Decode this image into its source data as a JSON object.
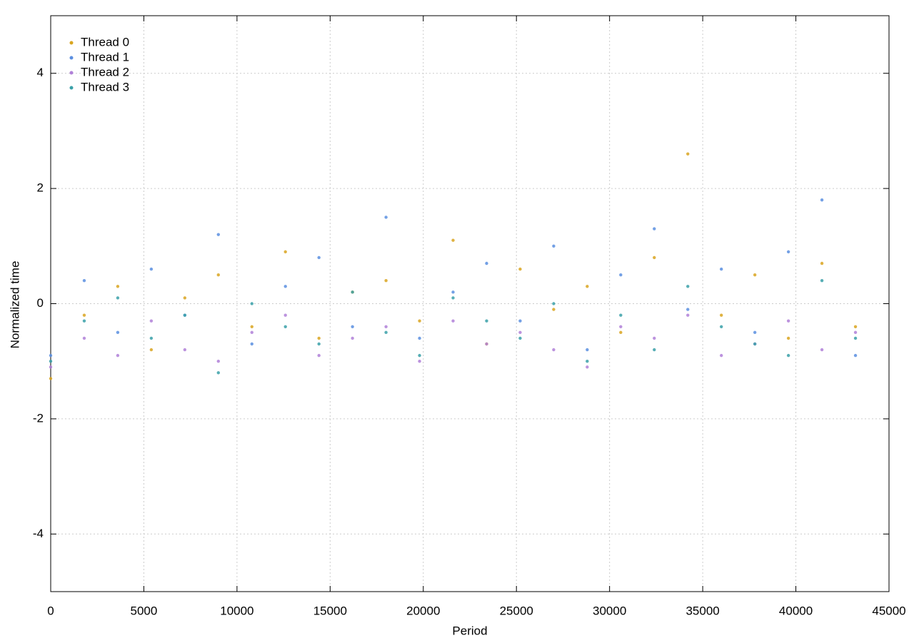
{
  "chart_data": {
    "type": "scatter",
    "x_label": "Period",
    "y_label": "Normalized time",
    "x": [
      0,
      1800,
      3600,
      5400,
      7200,
      9000,
      10800,
      12600,
      14400,
      16200,
      18000,
      19800,
      21600,
      23400,
      25200,
      27000,
      28800,
      30600,
      32400,
      34200,
      36000,
      37800,
      39600,
      41400,
      43200
    ],
    "series": [
      {
        "name": "Thread 0",
        "color": "#d9a520",
        "values": [
          -1.3,
          -0.2,
          0.3,
          -0.8,
          0.1,
          0.5,
          -0.4,
          0.9,
          -0.6,
          0.2,
          0.4,
          -0.3,
          1.1,
          -0.7,
          0.6,
          -0.1,
          0.3,
          -0.5,
          0.8,
          2.6,
          -0.2,
          0.5,
          -0.6,
          0.7,
          -0.4
        ]
      },
      {
        "name": "Thread 1",
        "color": "#5b8fe0",
        "values": [
          -0.9,
          0.4,
          -0.5,
          0.6,
          -0.2,
          1.2,
          -0.7,
          0.3,
          0.8,
          -0.4,
          1.5,
          -0.6,
          0.2,
          0.7,
          -0.3,
          1.0,
          -0.8,
          0.5,
          1.3,
          -0.1,
          0.6,
          -0.5,
          0.9,
          1.8,
          -0.9
        ]
      },
      {
        "name": "Thread 2",
        "color": "#b080d8",
        "values": [
          -1.1,
          -0.6,
          -0.9,
          -0.3,
          -0.8,
          -1.0,
          -0.5,
          -0.2,
          -0.9,
          -0.6,
          -0.4,
          -1.0,
          -0.3,
          -0.7,
          -0.5,
          -0.8,
          -1.1,
          -0.4,
          -0.6,
          -0.2,
          -0.9,
          -0.7,
          -0.3,
          -0.8,
          -0.5
        ]
      },
      {
        "name": "Thread 3",
        "color": "#3aa0a8",
        "values": [
          -1.0,
          -0.3,
          0.1,
          -0.6,
          -0.2,
          -1.2,
          0.0,
          -0.4,
          -0.7,
          0.2,
          -0.5,
          -0.9,
          0.1,
          -0.3,
          -0.6,
          0.0,
          -1.0,
          -0.2,
          -0.8,
          0.3,
          -0.4,
          -0.7,
          -0.9,
          0.4,
          -0.6
        ]
      }
    ],
    "xlim": [
      0,
      45000
    ],
    "xticks": [
      0,
      5000,
      10000,
      15000,
      20000,
      25000,
      30000,
      35000,
      40000,
      45000
    ],
    "ylim": [
      -5,
      5
    ],
    "yticks": [
      -4,
      -2,
      0,
      2,
      4
    ],
    "grid": true,
    "legend": "top-left"
  }
}
